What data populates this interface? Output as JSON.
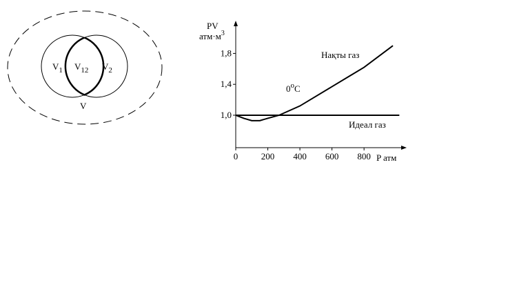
{
  "venn": {
    "labels": [
      {
        "main": "V",
        "sub": "1"
      },
      {
        "main": "V",
        "sub": "12"
      },
      {
        "main": "V",
        "sub": "2"
      }
    ],
    "outer_label": "V"
  },
  "chart_data": {
    "type": "line",
    "y_label": {
      "main": "PV",
      "unit": "атм·м",
      "power": "3"
    },
    "x_label": "P атм",
    "annotation": {
      "main": "0",
      "degree": "o",
      "unit": "C"
    },
    "series": [
      {
        "name": "Нақты газ",
        "color": "#000000",
        "x": [
          0,
          50,
          100,
          150,
          200,
          270,
          400,
          600,
          800,
          980
        ],
        "values": [
          1.0,
          0.96,
          0.93,
          0.93,
          0.96,
          1.0,
          1.12,
          1.37,
          1.62,
          1.9
        ]
      },
      {
        "name": "Идеал газ",
        "color": "#000000",
        "x": [
          0,
          1020
        ],
        "values": [
          1.0,
          1.0
        ]
      }
    ],
    "xlim": [
      0,
      1040
    ],
    "ylim": [
      0.58,
      2.17
    ],
    "xticks": [
      0,
      200,
      400,
      600,
      800
    ],
    "yticks": [
      {
        "value": 1.0,
        "label": "1,0"
      },
      {
        "value": 1.4,
        "label": "1,4"
      },
      {
        "value": 1.8,
        "label": "1,8"
      }
    ]
  }
}
